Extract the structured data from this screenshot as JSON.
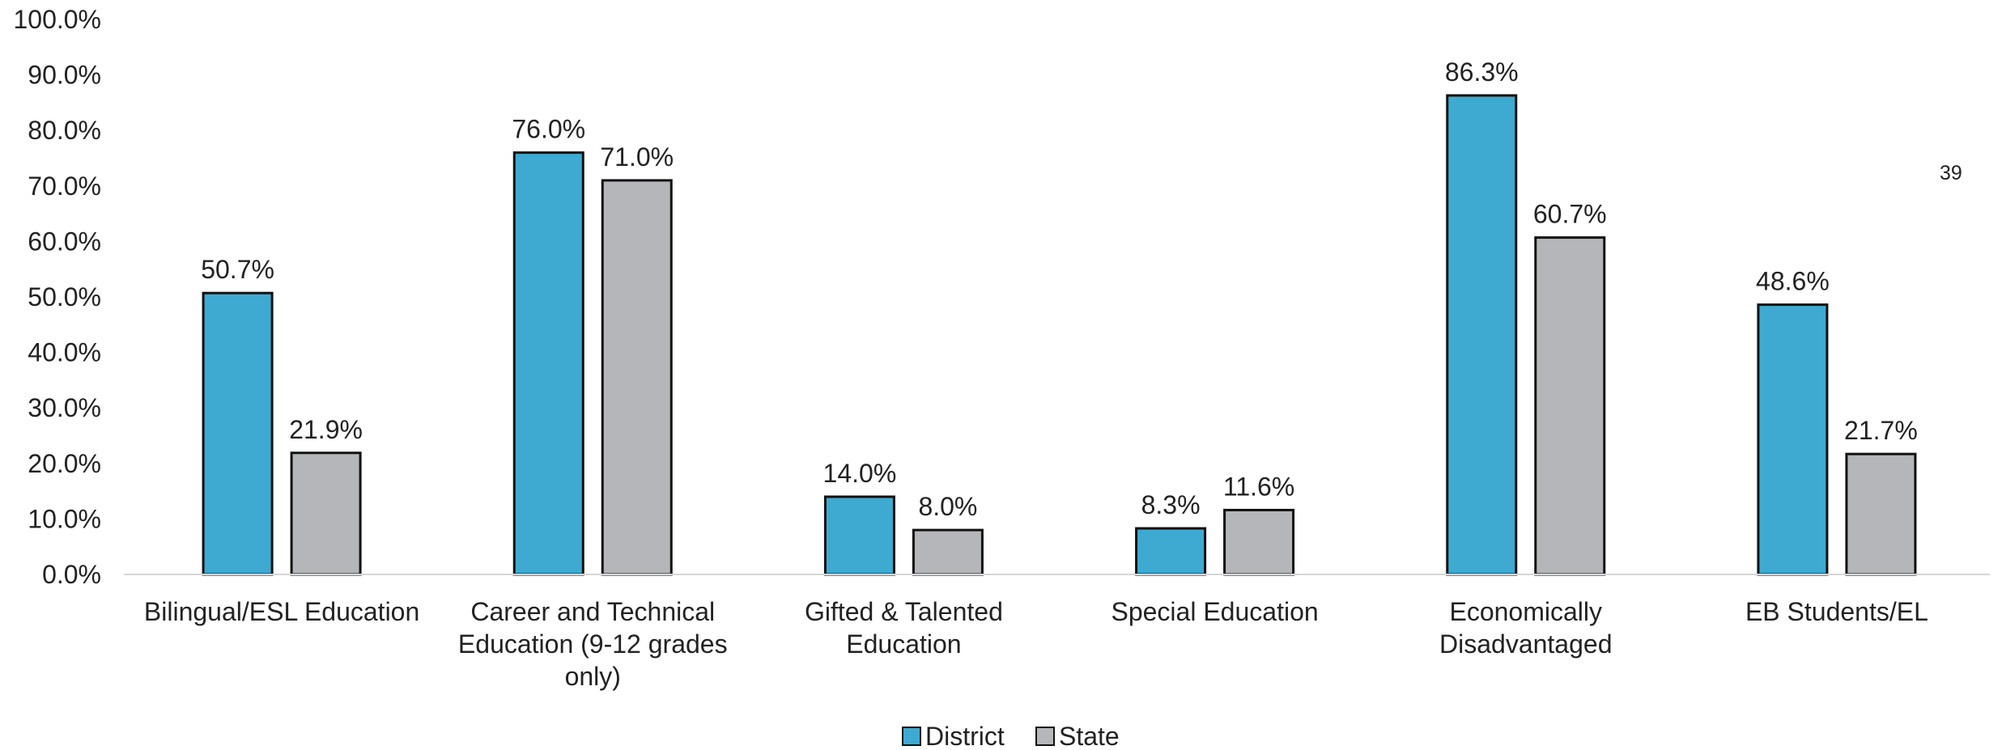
{
  "page_number": "39",
  "chart_data": {
    "type": "bar",
    "title": "",
    "xlabel": "",
    "ylabel": "",
    "ylim": [
      0,
      100
    ],
    "ytick_step": 10,
    "ytick_format": "percent_1dp",
    "grid": false,
    "legend_position": "bottom-center",
    "categories": [
      [
        "Bilingual/ESL Education"
      ],
      [
        "Career and Technical",
        "Education (9-12 grades",
        "only)"
      ],
      [
        "Gifted & Talented",
        "Education"
      ],
      [
        "Special Education"
      ],
      [
        "Economically",
        "Disadvantaged"
      ],
      [
        "EB Students/EL"
      ]
    ],
    "series": [
      {
        "name": "District",
        "color": "#3eaad1",
        "values": [
          50.7,
          76.0,
          14.0,
          8.3,
          86.3,
          48.6
        ],
        "labels": [
          "50.7%",
          "76.0%",
          "14.0%",
          "8.3%",
          "86.3%",
          "48.6%"
        ]
      },
      {
        "name": "State",
        "color": "#b5b6b9",
        "values": [
          21.9,
          71.0,
          8.0,
          11.6,
          60.7,
          21.7
        ],
        "labels": [
          "21.9%",
          "71.0%",
          "8.0%",
          "11.6%",
          "60.7%",
          "21.7%"
        ]
      }
    ]
  }
}
